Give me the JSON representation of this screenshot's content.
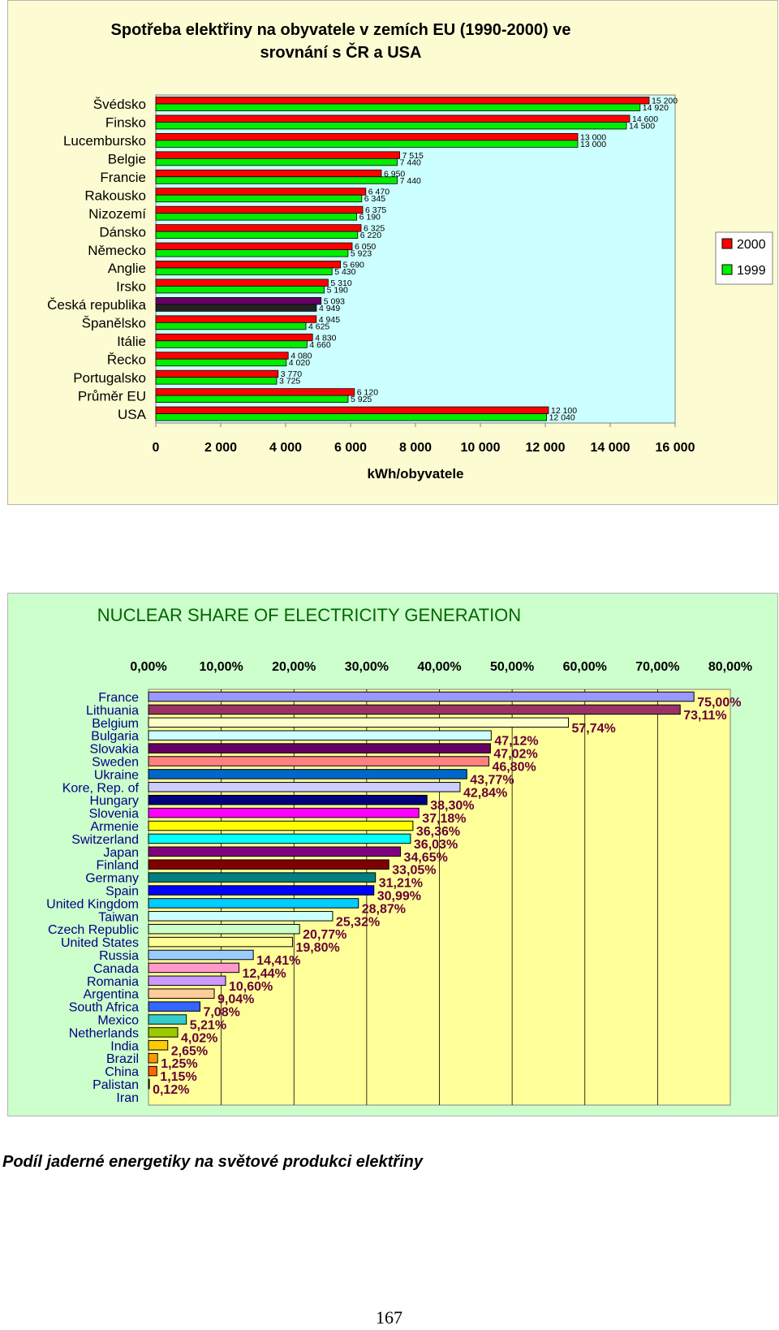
{
  "chart_data": [
    {
      "type": "bar",
      "orientation": "horizontal",
      "title": "Spotřeba elektřiny na obyvatele v zemích EU (1990-2000) ve srovnání s ČR a USA",
      "xlabel": "kWh/obyvatele",
      "xlim": [
        0,
        16000
      ],
      "x_ticks": [
        "0",
        "2 000",
        "4 000",
        "6 000",
        "8 000",
        "10 000",
        "12 000",
        "14 000",
        "16 000"
      ],
      "categories": [
        "Švédsko",
        "Finsko",
        "Lucembursko",
        "Belgie",
        "Francie",
        "Rakousko",
        "Nizozemí",
        "Dánsko",
        "Německo",
        "Anglie",
        "Irsko",
        "Česká republika",
        "Španělsko",
        "Itálie",
        "Řecko",
        "Portugalsko",
        "Průměr EU",
        "USA"
      ],
      "series": [
        {
          "name": "2000",
          "color": "#ff0000",
          "values": [
            15200,
            14600,
            13000,
            7515,
            6950,
            6470,
            6375,
            6325,
            6050,
            5690,
            5310,
            5093,
            4945,
            4830,
            4080,
            3770,
            6120,
            12100
          ],
          "labels": [
            "15 200",
            "14 600",
            "13 000",
            "7 515",
            "6 950",
            "6 470",
            "6 375",
            "6 325",
            "6 050",
            "5 690",
            "5 310",
            "5 093",
            "4 945",
            "4 830",
            "4 080",
            "3 770",
            "6 120",
            "12 100"
          ]
        },
        {
          "name": "1999",
          "color": "#00ee00",
          "values": [
            14920,
            14500,
            13000,
            7440,
            7440,
            6345,
            6190,
            6220,
            5923,
            5430,
            5190,
            4949,
            4625,
            4660,
            4020,
            3725,
            5925,
            12040
          ],
          "labels": [
            "14 920",
            "14 500",
            "13 000",
            "7 440",
            "7 440",
            "6 345",
            "6 190",
            "6 220",
            "5 923",
            "5 430",
            "5 190",
            "4 949",
            "4 625",
            "4 660",
            "4 020",
            "3 725",
            "5 925",
            "12 040"
          ]
        }
      ],
      "highlight": {
        "category": "Česká republika",
        "colors": [
          "#660066",
          "#222222"
        ]
      },
      "grid": false,
      "legend": "right",
      "plot_bg": "#ccffff",
      "page_bg": "#fdfbd2"
    },
    {
      "type": "bar",
      "orientation": "horizontal",
      "title": "NUCLEAR SHARE OF ELECTRICITY GENERATION",
      "xlim": [
        0,
        80
      ],
      "x_ticks": [
        "0,00%",
        "10,00%",
        "20,00%",
        "30,00%",
        "40,00%",
        "50,00%",
        "60,00%",
        "70,00%",
        "80,00%"
      ],
      "x_axis_position": "top",
      "categories": [
        "France",
        "Lithuania",
        "Belgium",
        "Bulgaria",
        "Slovakia",
        "Sweden",
        "Ukraine",
        "Kore, Rep. of",
        "Hungary",
        "Slovenia",
        "Armenie",
        "Switzerland",
        "Japan",
        "Finland",
        "Germany",
        "Spain",
        "United Kingdom",
        "Taiwan",
        "Czech Republic",
        "United States",
        "Russia",
        "Canada",
        "Romania",
        "Argentina",
        "South Africa",
        "Mexico",
        "Netherlands",
        "India",
        "Brazil",
        "China",
        "Palistan",
        "Iran"
      ],
      "values": [
        75.0,
        73.11,
        57.74,
        47.12,
        47.02,
        46.8,
        43.77,
        42.84,
        38.3,
        37.18,
        36.36,
        36.03,
        34.65,
        33.05,
        31.21,
        30.99,
        28.87,
        25.32,
        20.77,
        19.8,
        14.41,
        12.44,
        10.6,
        9.04,
        7.08,
        5.21,
        4.02,
        2.65,
        1.25,
        1.15,
        0.12,
        0
      ],
      "labels": [
        "75,00%",
        "73,11%",
        "57,74%",
        "47,12%",
        "47,02%",
        "46,80%",
        "43,77%",
        "42,84%",
        "38,30%",
        "37,18%",
        "36,36%",
        "36,03%",
        "34,65%",
        "33,05%",
        "31,21%",
        "30,99%",
        "28,87%",
        "25,32%",
        "20,77%",
        "19,80%",
        "14,41%",
        "12,44%",
        "10,60%",
        "9,04%",
        "7,08%",
        "5,21%",
        "4,02%",
        "2,65%",
        "1,25%",
        "1,15%",
        "0,12%",
        ""
      ],
      "colors": [
        "#9999ff",
        "#993366",
        "#ffffcc",
        "#ccffff",
        "#660066",
        "#ff8080",
        "#0066cc",
        "#ccccff",
        "#000080",
        "#ff00ff",
        "#ffff00",
        "#00ffff",
        "#800080",
        "#800000",
        "#008080",
        "#0000ff",
        "#00ccff",
        "#ccffff",
        "#ccffcc",
        "#ffff99",
        "#99ccff",
        "#ff99cc",
        "#cc99ff",
        "#ffcc99",
        "#3366ff",
        "#33cccc",
        "#99cc00",
        "#ffcc00",
        "#ff9900",
        "#ff6600",
        "#666699",
        "#969696"
      ],
      "label_color": "#660033",
      "grid": true,
      "plot_bg": "#ffff99",
      "page_bg": "#ccffcc"
    }
  ],
  "caption": "Podíl jaderné energetiky na světové produkci elektřiny",
  "page_number": "167"
}
